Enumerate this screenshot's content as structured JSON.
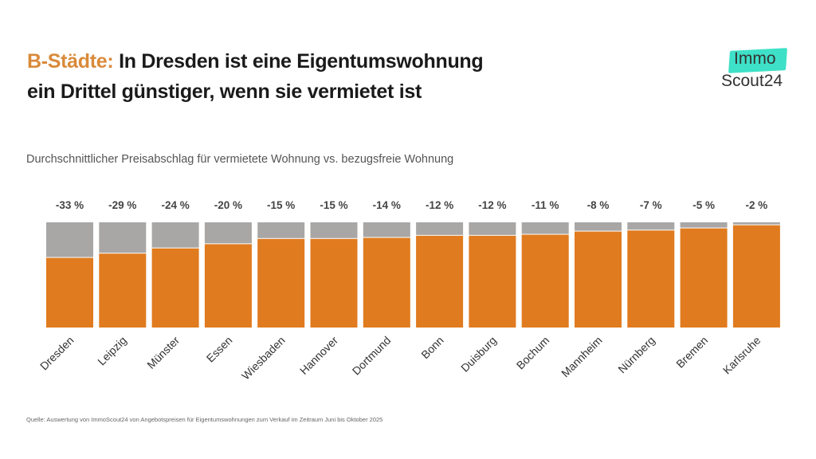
{
  "header": {
    "title_accent": "B-Städte:",
    "title_line1": " In Dresden ist eine  Eigentumswohnung",
    "title_line2": "ein Drittel günstiger, wenn sie vermietet ist"
  },
  "logo": {
    "line1": "Immo",
    "line2": "Scout24",
    "accent_color": "#3ee0c7"
  },
  "source": "Quelle: Auswertung von ImmoScout24 von Angebotspreisen für Eigentumswohnungen zum Verkauf im Zeitraum Juni bis Oktober 2025",
  "chart_data": {
    "type": "bar",
    "title": "Durchschnittlicher Preisabschlag für vermietete Wohnung vs. bezugsfreie Wohnung",
    "categories": [
      "Dresden",
      "Leipzig",
      "Münster",
      "Essen",
      "Wiesbaden",
      "Hannover",
      "Dortmund",
      "Bonn",
      "Duisburg",
      "Bochum",
      "Mannheim",
      "Nürnberg",
      "Bremen",
      "Karlsruhe"
    ],
    "values": [
      -33,
      -29,
      -24,
      -20,
      -15,
      -15,
      -14,
      -12,
      -12,
      -11,
      -8,
      -7,
      -5,
      -2
    ],
    "data_labels": [
      "-33 %",
      "-29 %",
      "-24 %",
      "-20 %",
      "-15 %",
      "-15 %",
      "-14 %",
      "-12 %",
      "-12 %",
      "-11 %",
      "-8 %",
      "-7 %",
      "-5 %",
      "-2 %"
    ],
    "unit": "%",
    "ylim": [
      -100,
      0
    ],
    "grid": false,
    "colors": {
      "price": "#e07b1f",
      "discount": "#a9a7a6"
    }
  }
}
